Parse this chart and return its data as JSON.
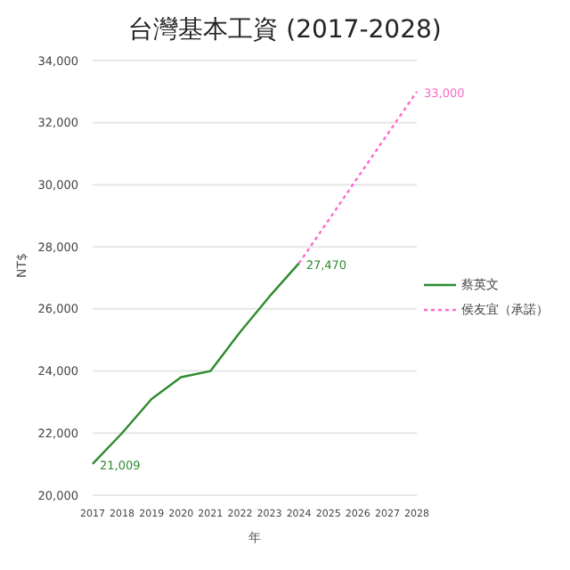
{
  "chart_data": {
    "type": "line",
    "title": "台灣基本工資 (2017-2028)",
    "xlabel": "年",
    "ylabel": "NT$",
    "categories": [
      "2017",
      "2018",
      "2019",
      "2020",
      "2021",
      "2022",
      "2023",
      "2024",
      "2025",
      "2026",
      "2027",
      "2028"
    ],
    "series": [
      {
        "name": "蔡英文",
        "color": "#2e8b2e",
        "line_style": "solid",
        "values": [
          21009,
          22000,
          23100,
          23800,
          24000,
          25250,
          26400,
          27470,
          null,
          null,
          null,
          null
        ],
        "value_labels": [
          "21,009",
          null,
          null,
          null,
          null,
          null,
          null,
          "27,470",
          null,
          null,
          null,
          null
        ]
      },
      {
        "name": "侯友宜（承諾）",
        "color": "#ff69c8",
        "line_style": "dotted",
        "values": [
          null,
          null,
          null,
          null,
          null,
          null,
          null,
          27470,
          28850,
          30240,
          31620,
          33000
        ],
        "value_labels": [
          null,
          null,
          null,
          null,
          null,
          null,
          null,
          null,
          null,
          null,
          null,
          "33,000"
        ]
      }
    ],
    "ylim": [
      20000,
      34000
    ],
    "yticks": [
      {
        "value": 20000,
        "label": "20,000"
      },
      {
        "value": 22000,
        "label": "22,000"
      },
      {
        "value": 24000,
        "label": "24,000"
      },
      {
        "value": 26000,
        "label": "26,000"
      },
      {
        "value": 28000,
        "label": "28,000"
      },
      {
        "value": 30000,
        "label": "30,000"
      },
      {
        "value": 32000,
        "label": "32,000"
      },
      {
        "value": 34000,
        "label": "34,000"
      }
    ],
    "grid": "y",
    "legend": "right",
    "marker": "none"
  }
}
